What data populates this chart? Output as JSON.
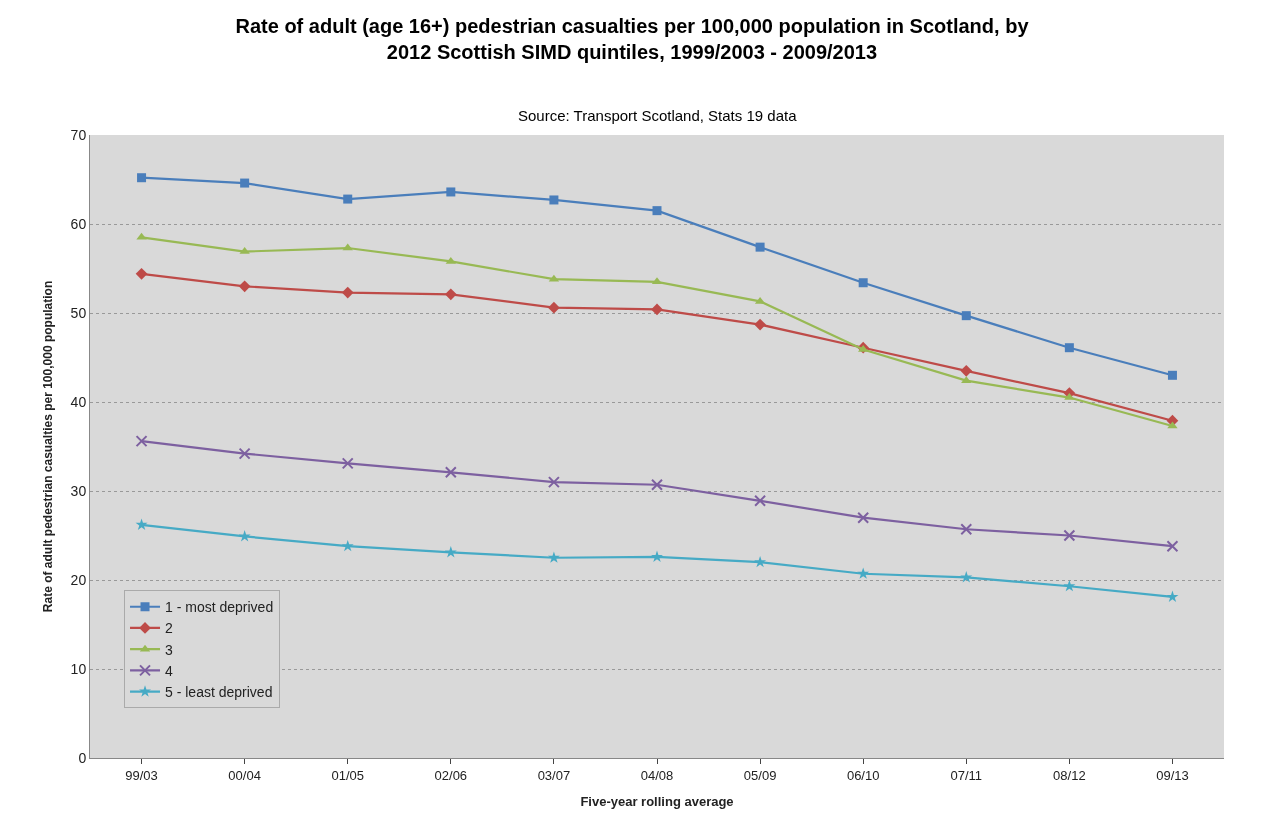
{
  "chart_data": {
    "type": "line",
    "title": "Rate of adult (age 16+) pedestrian casualties per 100,000 population in Scotland, by\n2012 Scottish SIMD quintiles, 1999/2003 - 2009/2013",
    "subtitle": "Source: Transport Scotland, Stats 19 data",
    "xlabel": "Five-year rolling average",
    "ylabel": "Rate of adult pedestrian casualties per 100,000 population",
    "categories": [
      "99/03",
      "00/04",
      "01/05",
      "02/06",
      "03/07",
      "04/08",
      "05/09",
      "06/10",
      "07/11",
      "08/12",
      "09/13"
    ],
    "series": [
      {
        "name": "1 - most deprived",
        "color": "#4a7ebb",
        "marker": "square",
        "values": [
          65.2,
          64.6,
          62.8,
          63.6,
          62.7,
          61.5,
          57.4,
          53.4,
          49.7,
          46.1,
          43.0
        ]
      },
      {
        "name": "2",
        "color": "#be4b48",
        "marker": "diamond",
        "values": [
          54.4,
          53.0,
          52.3,
          52.1,
          50.6,
          50.4,
          48.7,
          46.1,
          43.5,
          41.0,
          37.9
        ]
      },
      {
        "name": "3",
        "color": "#98b954",
        "marker": "triangle",
        "values": [
          58.5,
          56.9,
          57.3,
          55.8,
          53.8,
          53.5,
          51.3,
          45.9,
          42.4,
          40.5,
          37.3
        ]
      },
      {
        "name": "4",
        "color": "#7d60a0",
        "marker": "cross",
        "values": [
          35.6,
          34.2,
          33.1,
          32.1,
          31.0,
          30.7,
          28.9,
          27.0,
          25.7,
          25.0,
          23.8
        ]
      },
      {
        "name": "5 - least deprived",
        "color": "#46aac5",
        "marker": "star",
        "values": [
          26.2,
          24.9,
          23.8,
          23.1,
          22.5,
          22.6,
          22.0,
          20.7,
          20.3,
          19.3,
          18.1
        ]
      }
    ],
    "ylim": [
      0,
      70
    ],
    "yticks": [
      0,
      10,
      20,
      30,
      40,
      50,
      60,
      70
    ],
    "grid": "y",
    "legend": "bottom left",
    "line_style": "solid"
  }
}
